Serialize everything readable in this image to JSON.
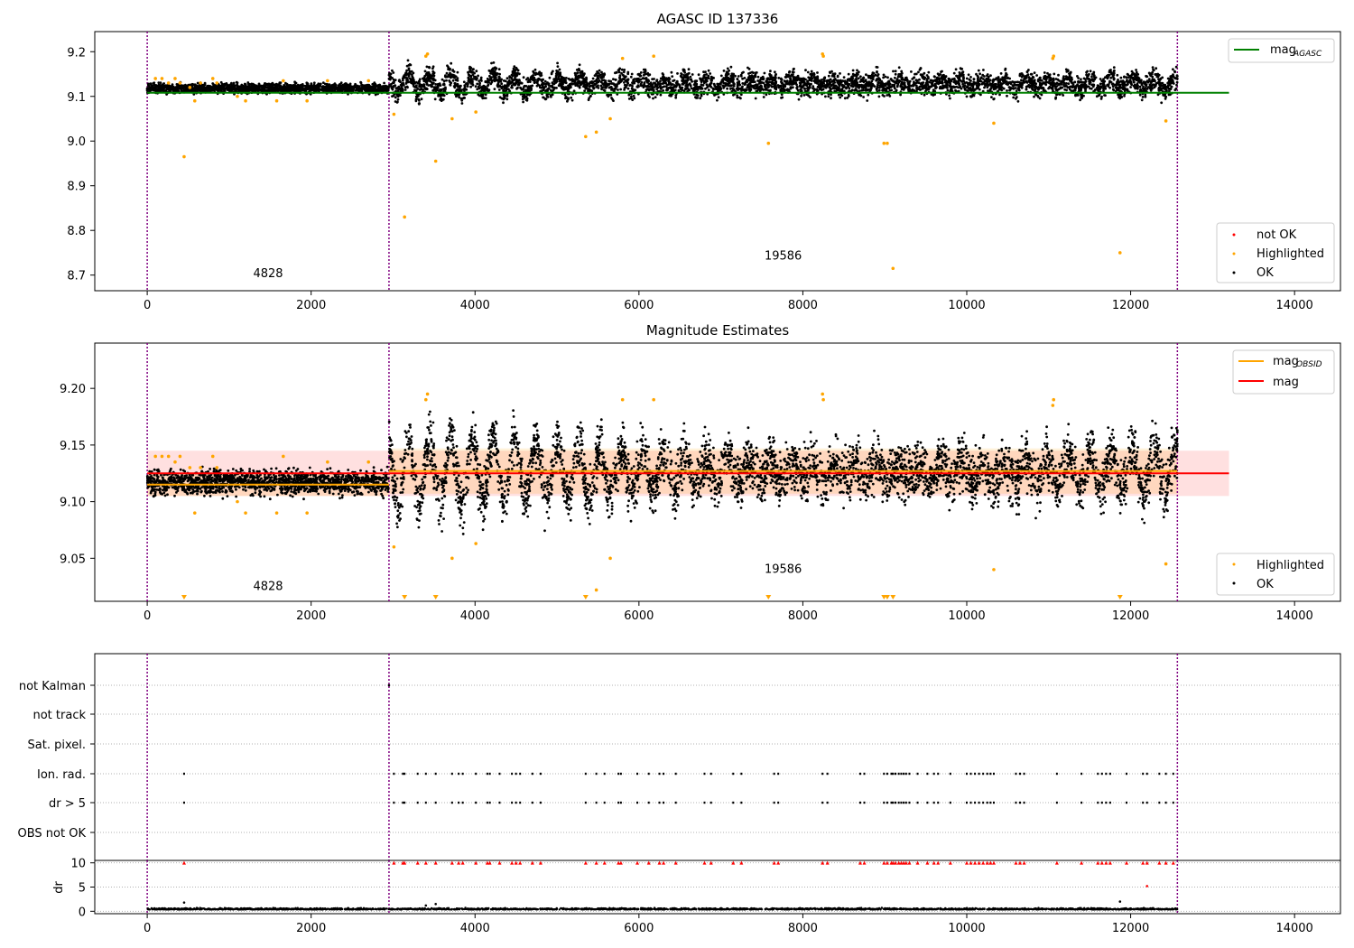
{
  "chart_data": [
    {
      "type": "scatter",
      "title": "AGASC ID 137336",
      "xlim": [
        -640,
        14560
      ],
      "ylim": [
        8.665,
        9.245
      ],
      "xticks": [
        0,
        2000,
        4000,
        6000,
        8000,
        10000,
        12000,
        14000
      ],
      "xtick_labels": [
        "0",
        "2000",
        "4000",
        "6000",
        "8000",
        "10000",
        "12000",
        "14000"
      ],
      "yticks": [
        8.7,
        8.8,
        8.9,
        9.0,
        9.1,
        9.2
      ],
      "ytick_labels": [
        "8.7",
        "8.8",
        "8.9",
        "9.0",
        "9.1",
        "9.2"
      ],
      "obsid_boundaries": [
        0,
        2950,
        12570
      ],
      "obsid_labels": [
        {
          "text": "4828",
          "x": 1475,
          "y": 8.695
        },
        {
          "text": "19586",
          "x": 7760,
          "y": 8.735
        }
      ],
      "mag_agasc": {
        "value": 9.108,
        "x_range": [
          0,
          13200
        ]
      },
      "highlighted_points": [
        [
          100,
          9.14
        ],
        [
          180,
          9.14
        ],
        [
          260,
          9.13
        ],
        [
          340,
          9.14
        ],
        [
          400,
          9.13
        ],
        [
          450,
          8.965
        ],
        [
          520,
          9.12
        ],
        [
          580,
          9.09
        ],
        [
          650,
          9.13
        ],
        [
          800,
          9.14
        ],
        [
          850,
          9.13
        ],
        [
          1100,
          9.1
        ],
        [
          1200,
          9.09
        ],
        [
          1580,
          9.09
        ],
        [
          1660,
          9.135
        ],
        [
          1950,
          9.09
        ],
        [
          2200,
          9.135
        ],
        [
          2700,
          9.135
        ],
        [
          3010,
          9.06
        ],
        [
          3140,
          8.83
        ],
        [
          3400,
          9.19
        ],
        [
          3420,
          9.195
        ],
        [
          3520,
          8.955
        ],
        [
          3720,
          9.05
        ],
        [
          4010,
          9.065
        ],
        [
          5350,
          9.01
        ],
        [
          5480,
          9.02
        ],
        [
          5650,
          9.05
        ],
        [
          5800,
          9.185
        ],
        [
          6180,
          9.19
        ],
        [
          7580,
          8.995
        ],
        [
          8240,
          9.195
        ],
        [
          8250,
          9.19
        ],
        [
          8990,
          8.995
        ],
        [
          9030,
          8.995
        ],
        [
          9100,
          8.715
        ],
        [
          10330,
          9.04
        ],
        [
          11050,
          9.185
        ],
        [
          11060,
          9.19
        ],
        [
          11870,
          8.75
        ],
        [
          12430,
          9.045
        ]
      ],
      "ok_series": [
        {
          "x_range": [
            0,
            2950
          ],
          "center": 9.118,
          "spread": 0.009
        },
        {
          "x_range": [
            2950,
            12570
          ],
          "center": 9.128,
          "spread": 0.022,
          "amplitude": 0.02
        }
      ],
      "legend_top": [
        {
          "name": "mag$_{AGASC}$",
          "label": "mag",
          "sub": "AGASC",
          "color": "#008000"
        }
      ],
      "legend_bottom": [
        {
          "name": "not OK",
          "color": "#ff0000"
        },
        {
          "name": "Highlighted",
          "color": "#ffa500"
        },
        {
          "name": "OK",
          "color": "#000000"
        }
      ]
    },
    {
      "type": "scatter",
      "title": "Magnitude Estimates",
      "xlim": [
        -640,
        14560
      ],
      "ylim": [
        9.012,
        9.24
      ],
      "xticks": [
        0,
        2000,
        4000,
        6000,
        8000,
        10000,
        12000,
        14000
      ],
      "xtick_labels": [
        "0",
        "2000",
        "4000",
        "6000",
        "8000",
        "10000",
        "12000",
        "14000"
      ],
      "yticks": [
        9.05,
        9.1,
        9.15,
        9.2
      ],
      "ytick_labels": [
        "9.05",
        "9.10",
        "9.15",
        "9.20"
      ],
      "obsid_boundaries": [
        0,
        2950,
        12570
      ],
      "obsid_labels": [
        {
          "text": "4828",
          "x": 1475,
          "y": 9.022
        },
        {
          "text": "19586",
          "x": 7760,
          "y": 9.037
        }
      ],
      "mag": {
        "value": 9.125,
        "band": [
          9.105,
          9.145
        ],
        "x_range": [
          0,
          13200
        ],
        "color": "#ff0000"
      },
      "mag_obsid": [
        {
          "x_range": [
            0,
            2950
          ],
          "value": 9.115,
          "band": [
            9.105,
            9.125
          ]
        },
        {
          "x_range": [
            2950,
            12570
          ],
          "value": 9.127,
          "band": [
            9.107,
            9.147
          ]
        }
      ],
      "highlighted_points": [
        [
          100,
          9.14
        ],
        [
          180,
          9.14
        ],
        [
          260,
          9.14
        ],
        [
          340,
          9.135
        ],
        [
          400,
          9.14
        ],
        [
          520,
          9.13
        ],
        [
          580,
          9.09
        ],
        [
          650,
          9.13
        ],
        [
          800,
          9.14
        ],
        [
          850,
          9.13
        ],
        [
          1100,
          9.1
        ],
        [
          1200,
          9.09
        ],
        [
          1580,
          9.09
        ],
        [
          1660,
          9.14
        ],
        [
          1950,
          9.09
        ],
        [
          2200,
          9.135
        ],
        [
          2700,
          9.135
        ],
        [
          3010,
          9.06
        ],
        [
          3400,
          9.19
        ],
        [
          3420,
          9.195
        ],
        [
          3720,
          9.05
        ],
        [
          4010,
          9.063
        ],
        [
          5480,
          9.022
        ],
        [
          5650,
          9.05
        ],
        [
          5800,
          9.19
        ],
        [
          6180,
          9.19
        ],
        [
          8240,
          9.195
        ],
        [
          8250,
          9.19
        ],
        [
          10330,
          9.04
        ],
        [
          11050,
          9.185
        ],
        [
          11060,
          9.19
        ],
        [
          12430,
          9.045
        ]
      ],
      "below_range_markers": [
        450,
        3140,
        3520,
        5350,
        7580,
        8990,
        9030,
        9100,
        11870
      ],
      "legend_top": [
        {
          "name": "mag$_{OBSID}$",
          "label": "mag",
          "sub": "OBSID",
          "color": "#ffa500"
        },
        {
          "name": "mag",
          "label": "mag",
          "sub": "",
          "color": "#ff0000"
        }
      ],
      "legend_bottom": [
        {
          "name": "Highlighted",
          "color": "#ffa500"
        },
        {
          "name": "OK",
          "color": "#000000"
        }
      ]
    },
    {
      "type": "scatter",
      "title": "",
      "xlim": [
        -640,
        14560
      ],
      "flag_rows": [
        "not Kalman",
        "not track",
        "Sat. pixel.",
        "Ion. rad.",
        "dr > 5",
        "OBS not OK"
      ],
      "obsid_boundaries": [
        0,
        2950,
        12570
      ],
      "flag_points": {
        "not Kalman": [
          2950
        ],
        "Ion. rad.": [
          450,
          3010,
          3120,
          3140,
          3300,
          3400,
          3520,
          3720,
          3800,
          3850,
          4010,
          4150,
          4180,
          4300,
          4450,
          4500,
          4550,
          4700,
          4800,
          5350,
          5480,
          5580,
          5750,
          5780,
          5980,
          6120,
          6250,
          6300,
          6450,
          6800,
          6880,
          7150,
          7250,
          7650,
          7700,
          8240,
          8300,
          8700,
          8750,
          8990,
          9030,
          9080,
          9100,
          9130,
          9170,
          9200,
          9230,
          9260,
          9300,
          9400,
          9520,
          9600,
          9650,
          9800,
          10000,
          10050,
          10100,
          10150,
          10200,
          10250,
          10290,
          10330,
          10600,
          10650,
          10700,
          11100,
          11400,
          11600,
          11650,
          11700,
          11750,
          11950,
          12150,
          12200,
          12350,
          12430,
          12520
        ],
        "dr > 5": [
          450,
          3010,
          3120,
          3140,
          3300,
          3400,
          3520,
          3720,
          3800,
          3850,
          4010,
          4150,
          4180,
          4300,
          4450,
          4500,
          4550,
          4700,
          4800,
          5350,
          5480,
          5580,
          5750,
          5780,
          5980,
          6120,
          6250,
          6300,
          6450,
          6800,
          6880,
          7150,
          7250,
          7650,
          7700,
          8240,
          8300,
          8700,
          8750,
          8990,
          9030,
          9080,
          9100,
          9130,
          9170,
          9200,
          9230,
          9260,
          9300,
          9400,
          9520,
          9600,
          9650,
          9800,
          10000,
          10050,
          10100,
          10150,
          10200,
          10250,
          10290,
          10330,
          10600,
          10650,
          10700,
          11100,
          11400,
          11600,
          11650,
          11700,
          11750,
          11950,
          12150,
          12200,
          12350,
          12430,
          12520
        ]
      }
    },
    {
      "type": "scatter",
      "title": "",
      "ylabel": "dr",
      "xlim": [
        -640,
        14560
      ],
      "ylim": [
        -0.5,
        10.5
      ],
      "xticks": [
        0,
        2000,
        4000,
        6000,
        8000,
        10000,
        12000,
        14000
      ],
      "xtick_labels": [
        "0",
        "2000",
        "4000",
        "6000",
        "8000",
        "10000",
        "12000",
        "14000"
      ],
      "yticks": [
        0,
        5,
        10
      ],
      "ytick_labels": [
        "0",
        "5",
        "10"
      ],
      "obsid_boundaries": [
        0,
        2950,
        12570
      ],
      "dr_baseline": {
        "x_range": [
          0,
          12570
        ],
        "center": 0.35,
        "spread": 0.25
      },
      "clipped_markers_at": 10,
      "clipped_marker_x": [
        450,
        3010,
        3120,
        3140,
        3300,
        3400,
        3520,
        3720,
        3800,
        3850,
        4010,
        4150,
        4180,
        4300,
        4450,
        4500,
        4550,
        4700,
        4800,
        5350,
        5480,
        5580,
        5750,
        5780,
        5980,
        6120,
        6250,
        6300,
        6450,
        6800,
        6880,
        7150,
        7250,
        7650,
        7700,
        8240,
        8300,
        8700,
        8750,
        8990,
        9030,
        9080,
        9100,
        9130,
        9170,
        9200,
        9230,
        9260,
        9300,
        9400,
        9520,
        9600,
        9650,
        9800,
        10000,
        10050,
        10100,
        10150,
        10200,
        10250,
        10290,
        10330,
        10600,
        10650,
        10700,
        11100,
        11400,
        11600,
        11650,
        11700,
        11750,
        11950,
        12150,
        12200,
        12350,
        12430,
        12520
      ],
      "extra_points": [
        [
          12200,
          5.2
        ],
        [
          450,
          1.8
        ],
        [
          11870,
          2.0
        ],
        [
          3520,
          1.5
        ],
        [
          3400,
          1.2
        ]
      ]
    }
  ]
}
